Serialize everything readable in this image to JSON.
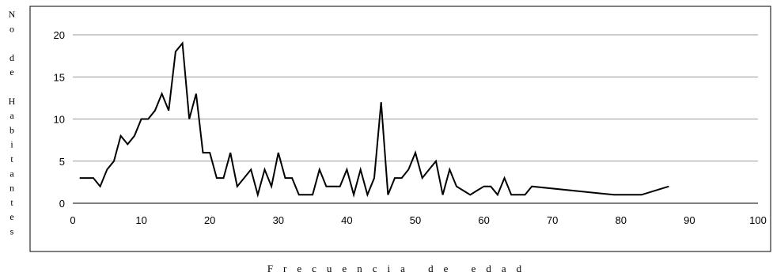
{
  "chart_data": {
    "type": "line",
    "ylabel": "No de Habitantes",
    "xlabel": "Frecuencia de edad",
    "xlim": [
      0,
      100
    ],
    "ylim": [
      0,
      20
    ],
    "xticks": [
      0,
      10,
      20,
      30,
      40,
      50,
      60,
      70,
      80,
      90,
      100
    ],
    "yticks": [
      0,
      5,
      10,
      15,
      20
    ],
    "grid": "horizontal",
    "line_color": "#000000",
    "series": [
      {
        "x": [
          1,
          3,
          4,
          5,
          6,
          7,
          8,
          9,
          10,
          11,
          12,
          13,
          14,
          15,
          16,
          17,
          18,
          19,
          20,
          21,
          22,
          23,
          24,
          25,
          26,
          27,
          28,
          29,
          30,
          31,
          32,
          33,
          34,
          35,
          36,
          37,
          38,
          39,
          40,
          41,
          42,
          43,
          44,
          45,
          46,
          47,
          48,
          49,
          50,
          51,
          52,
          53,
          54,
          55,
          56,
          57,
          58,
          59,
          60,
          61,
          62,
          63,
          64,
          65,
          66,
          67,
          79,
          80,
          83,
          87
        ],
        "y": [
          3,
          3,
          2,
          4,
          5,
          8,
          7,
          8,
          10,
          10,
          11,
          13,
          11,
          18,
          19,
          10,
          13,
          6,
          6,
          3,
          3,
          6,
          2,
          3,
          4,
          1,
          4,
          2,
          6,
          3,
          3,
          1,
          1,
          1,
          4,
          2,
          2,
          2,
          4,
          1,
          4,
          1,
          3,
          12,
          1,
          3,
          3,
          4,
          6,
          3,
          4,
          5,
          1,
          4,
          2,
          1.5,
          1,
          1.5,
          2,
          2,
          1,
          3,
          1,
          1,
          1,
          2,
          1,
          1,
          1,
          2
        ]
      }
    ]
  }
}
